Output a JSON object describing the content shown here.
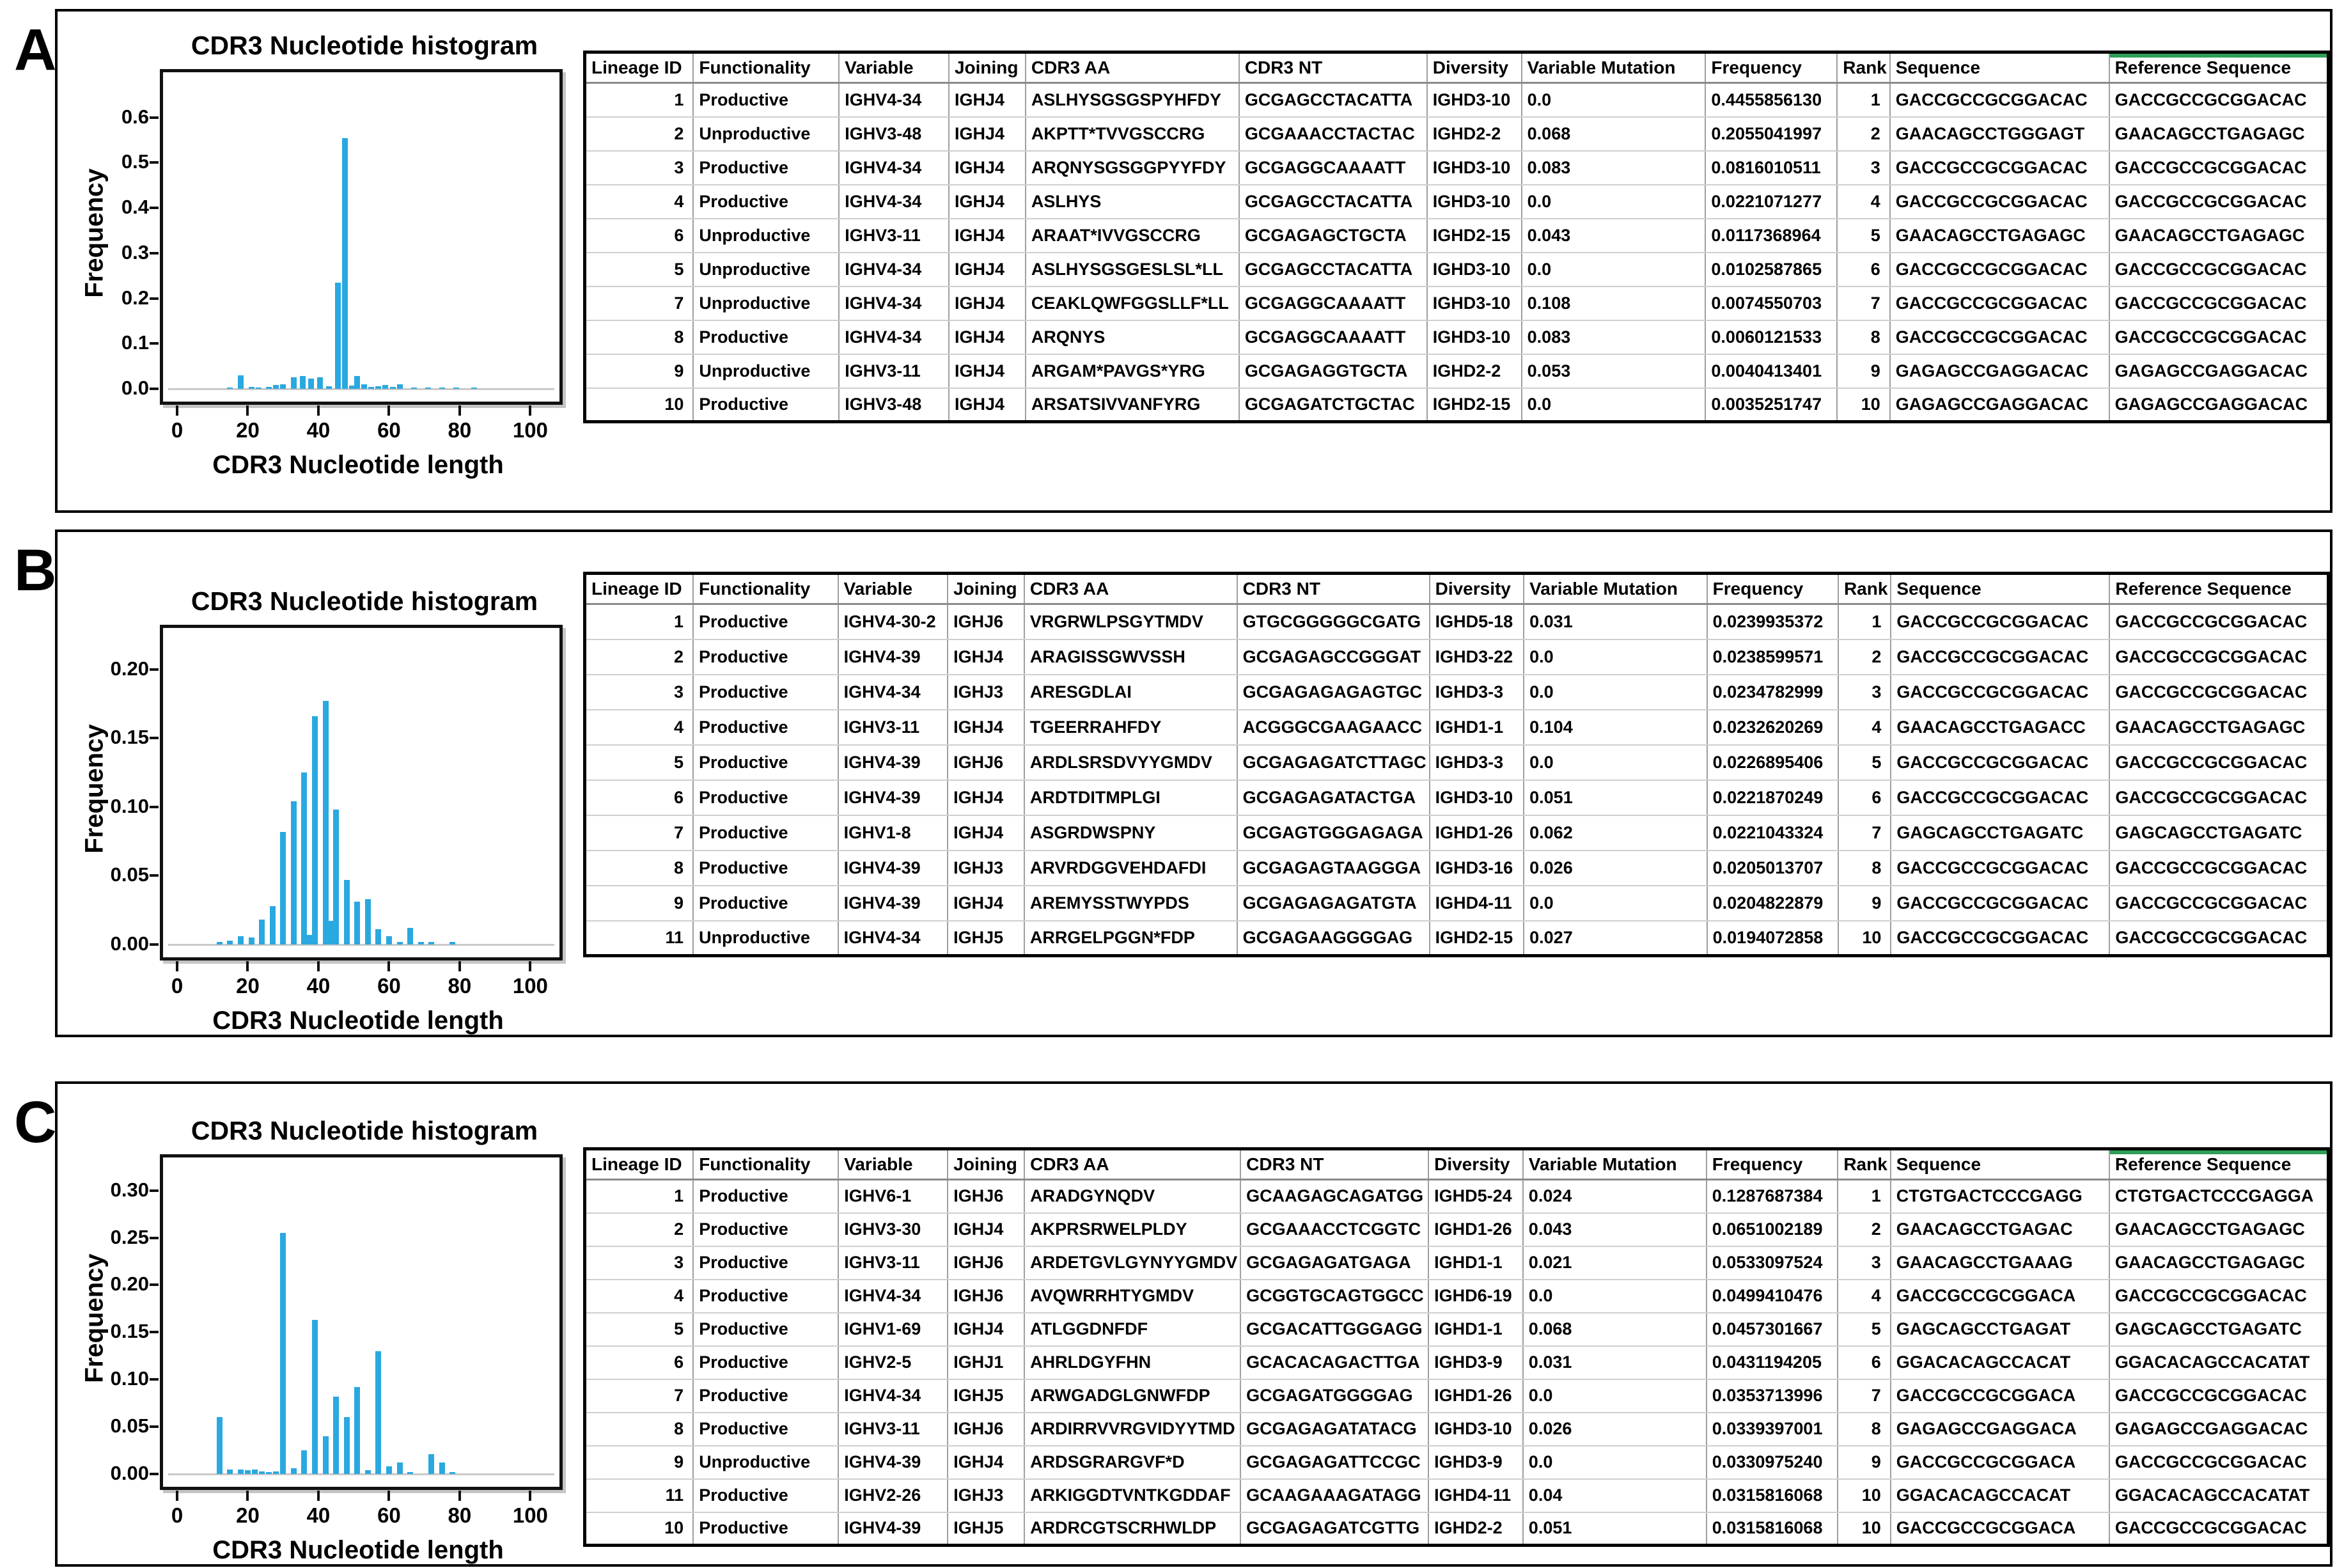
{
  "figure": {
    "bar_color": "#2aa8e0",
    "baseline_color": "#c9c9c9",
    "accent_green": "#2f9e57",
    "panels": [
      {
        "label": "A",
        "table": {
          "headers": [
            "Lineage ID",
            "Functionality",
            "Variable",
            "Joining",
            "CDR3 AA",
            "CDR3 NT",
            "Diversity",
            "Variable Mutation",
            "Frequency",
            "Rank",
            "Sequence",
            "Reference Sequence"
          ],
          "rows": [
            [
              "1",
              "Productive",
              "IGHV4-34",
              "IGHJ4",
              "ASLHYSGSGSPYHFDY",
              "GCGAGCCTACATTA",
              "IGHD3-10",
              "0.0",
              "0.4455856130",
              "1",
              "GACCGCCGCGGACAC",
              "GACCGCCGCGGACAC"
            ],
            [
              "2",
              "Unproductive",
              "IGHV3-48",
              "IGHJ4",
              "AKPTT*TVVGSCCRG",
              "GCGAAACCTACTAC",
              "IGHD2-2",
              "0.068",
              "0.2055041997",
              "2",
              "GAACAGCCTGGGAGT",
              "GAACAGCCTGAGAGC"
            ],
            [
              "3",
              "Productive",
              "IGHV4-34",
              "IGHJ4",
              "ARQNYSGSGGPYYFDY",
              "GCGAGGCAAAATT",
              "IGHD3-10",
              "0.083",
              "0.0816010511",
              "3",
              "GACCGCCGCGGACAC",
              "GACCGCCGCGGACAC"
            ],
            [
              "4",
              "Productive",
              "IGHV4-34",
              "IGHJ4",
              "ASLHYS",
              "GCGAGCCTACATTA",
              "IGHD3-10",
              "0.0",
              "0.0221071277",
              "4",
              "GACCGCCGCGGACAC",
              "GACCGCCGCGGACAC"
            ],
            [
              "6",
              "Unproductive",
              "IGHV3-11",
              "IGHJ4",
              "ARAAT*IVVGSCCRG",
              "GCGAGAGCTGCTA",
              "IGHD2-15",
              "0.043",
              "0.0117368964",
              "5",
              "GAACAGCCTGAGAGC",
              "GAACAGCCTGAGAGC"
            ],
            [
              "5",
              "Unproductive",
              "IGHV4-34",
              "IGHJ4",
              "ASLHYSGSGESLSL*LL",
              "GCGAGCCTACATTA",
              "IGHD3-10",
              "0.0",
              "0.0102587865",
              "6",
              "GACCGCCGCGGACAC",
              "GACCGCCGCGGACAC"
            ],
            [
              "7",
              "Unproductive",
              "IGHV4-34",
              "IGHJ4",
              "CEAKLQWFGGSLLF*LL",
              "GCGAGGCAAAATT",
              "IGHD3-10",
              "0.108",
              "0.0074550703",
              "7",
              "GACCGCCGCGGACAC",
              "GACCGCCGCGGACAC"
            ],
            [
              "8",
              "Productive",
              "IGHV4-34",
              "IGHJ4",
              "ARQNYS",
              "GCGAGGCAAAATT",
              "IGHD3-10",
              "0.083",
              "0.0060121533",
              "8",
              "GACCGCCGCGGACAC",
              "GACCGCCGCGGACAC"
            ],
            [
              "9",
              "Unproductive",
              "IGHV3-11",
              "IGHJ4",
              "ARGAM*PAVGS*YRG",
              "GCGAGAGGTGCTA",
              "IGHD2-2",
              "0.053",
              "0.0040413401",
              "9",
              "GAGAGCCGAGGACAC",
              "GAGAGCCGAGGACAC"
            ],
            [
              "10",
              "Productive",
              "IGHV3-48",
              "IGHJ4",
              "ARSATSIVVANFYRG",
              "GCGAGATCTGCTAC",
              "IGHD2-15",
              "0.0",
              "0.0035251747",
              "10",
              "GAGAGCCGAGGACAC",
              "GAGAGCCGAGGACAC"
            ]
          ]
        }
      },
      {
        "label": "B",
        "table": {
          "headers": [
            "Lineage ID",
            "Functionality",
            "Variable",
            "Joining",
            "CDR3 AA",
            "CDR3 NT",
            "Diversity",
            "Variable Mutation",
            "Frequency",
            "Rank",
            "Sequence",
            "Reference Sequence"
          ],
          "rows": [
            [
              "1",
              "Productive",
              "IGHV4-30-2",
              "IGHJ6",
              "VRGRWLPSGYTMDV",
              "GTGCGGGGGCGATG",
              "IGHD5-18",
              "0.031",
              "0.0239935372",
              "1",
              "GACCGCCGCGGACAC",
              "GACCGCCGCGGACAC"
            ],
            [
              "2",
              "Productive",
              "IGHV4-39",
              "IGHJ4",
              "ARAGISSGWVSSH",
              "GCGAGAGCCGGGAT",
              "IGHD3-22",
              "0.0",
              "0.0238599571",
              "2",
              "GACCGCCGCGGACAC",
              "GACCGCCGCGGACAC"
            ],
            [
              "3",
              "Productive",
              "IGHV4-34",
              "IGHJ3",
              "ARESGDLAI",
              "GCGAGAGAGAGTGC",
              "IGHD3-3",
              "0.0",
              "0.0234782999",
              "3",
              "GACCGCCGCGGACAC",
              "GACCGCCGCGGACAC"
            ],
            [
              "4",
              "Productive",
              "IGHV3-11",
              "IGHJ4",
              "TGEERRAHFDY",
              "ACGGGCGAAGAACC",
              "IGHD1-1",
              "0.104",
              "0.0232620269",
              "4",
              "GAACAGCCTGAGACC",
              "GAACAGCCTGAGAGC"
            ],
            [
              "5",
              "Productive",
              "IGHV4-39",
              "IGHJ6",
              "ARDLSRSDVYYGMDV",
              "GCGAGAGATCTTAGC",
              "IGHD3-3",
              "0.0",
              "0.0226895406",
              "5",
              "GACCGCCGCGGACAC",
              "GACCGCCGCGGACAC"
            ],
            [
              "6",
              "Productive",
              "IGHV4-39",
              "IGHJ4",
              "ARDTDITMPLGI",
              "GCGAGAGATACTGA",
              "IGHD3-10",
              "0.051",
              "0.0221870249",
              "6",
              "GACCGCCGCGGACAC",
              "GACCGCCGCGGACAC"
            ],
            [
              "7",
              "Productive",
              "IGHV1-8",
              "IGHJ4",
              "ASGRDWSPNY",
              "GCGAGTGGGAGAGA",
              "IGHD1-26",
              "0.062",
              "0.0221043324",
              "7",
              "GAGCAGCCTGAGATC",
              "GAGCAGCCTGAGATC"
            ],
            [
              "8",
              "Productive",
              "IGHV4-39",
              "IGHJ3",
              "ARVRDGGVEHDAFDI",
              "GCGAGAGTAAGGGA",
              "IGHD3-16",
              "0.026",
              "0.0205013707",
              "8",
              "GACCGCCGCGGACAC",
              "GACCGCCGCGGACAC"
            ],
            [
              "9",
              "Productive",
              "IGHV4-39",
              "IGHJ4",
              "AREMYSSTWYPDS",
              "GCGAGAGAGATGTA",
              "IGHD4-11",
              "0.0",
              "0.0204822879",
              "9",
              "GACCGCCGCGGACAC",
              "GACCGCCGCGGACAC"
            ],
            [
              "11",
              "Unproductive",
              "IGHV4-34",
              "IGHJ5",
              "ARRGELPGGN*FDP",
              "GCGAGAAGGGGAG",
              "IGHD2-15",
              "0.027",
              "0.0194072858",
              "10",
              "GACCGCCGCGGACAC",
              "GACCGCCGCGGACAC"
            ]
          ]
        }
      },
      {
        "label": "C",
        "table": {
          "headers": [
            "Lineage ID",
            "Functionality",
            "Variable",
            "Joining",
            "CDR3 AA",
            "CDR3 NT",
            "Diversity",
            "Variable Mutation",
            "Frequency",
            "Rank",
            "Sequence",
            "Reference Sequence"
          ],
          "rows": [
            [
              "1",
              "Productive",
              "IGHV6-1",
              "IGHJ6",
              "ARADGYNQDV",
              "GCAAGAGCAGATGG",
              "IGHD5-24",
              "0.024",
              "0.1287687384",
              "1",
              "CTGTGACTCCCGAGG",
              "CTGTGACTCCCGAGGA"
            ],
            [
              "2",
              "Productive",
              "IGHV3-30",
              "IGHJ4",
              "AKPRSRWELPLDY",
              "GCGAAACCTCGGTC",
              "IGHD1-26",
              "0.043",
              "0.0651002189",
              "2",
              "GAACAGCCTGAGAC",
              "GAACAGCCTGAGAGC"
            ],
            [
              "3",
              "Productive",
              "IGHV3-11",
              "IGHJ6",
              "ARDETGVLGYNYYGMDV",
              "GCGAGAGATGAGA",
              "IGHD1-1",
              "0.021",
              "0.0533097524",
              "3",
              "GAACAGCCTGAAAG",
              "GAACAGCCTGAGAGC"
            ],
            [
              "4",
              "Productive",
              "IGHV4-34",
              "IGHJ6",
              "AVQWRRHTYGMDV",
              "GCGGTGCAGTGGCC",
              "IGHD6-19",
              "0.0",
              "0.0499410476",
              "4",
              "GACCGCCGCGGACA",
              "GACCGCCGCGGACAC"
            ],
            [
              "5",
              "Productive",
              "IGHV1-69",
              "IGHJ4",
              "ATLGGDNFDF",
              "GCGACATTGGGAGG",
              "IGHD1-1",
              "0.068",
              "0.0457301667",
              "5",
              "GAGCAGCCTGAGAT",
              "GAGCAGCCTGAGATC"
            ],
            [
              "6",
              "Productive",
              "IGHV2-5",
              "IGHJ1",
              "AHRLDGYFHN",
              "GCACACAGACTTGA",
              "IGHD3-9",
              "0.031",
              "0.0431194205",
              "6",
              "GGACACAGCCACAT",
              "GGACACAGCCACATAT"
            ],
            [
              "7",
              "Productive",
              "IGHV4-34",
              "IGHJ5",
              "ARWGADGLGNWFDP",
              "GCGAGATGGGGAG",
              "IGHD1-26",
              "0.0",
              "0.0353713996",
              "7",
              "GACCGCCGCGGACA",
              "GACCGCCGCGGACAC"
            ],
            [
              "8",
              "Productive",
              "IGHV3-11",
              "IGHJ6",
              "ARDIRRVVRGVIDYYTMD",
              "GCGAGAGATATACG",
              "IGHD3-10",
              "0.026",
              "0.0339397001",
              "8",
              "GAGAGCCGAGGACA",
              "GAGAGCCGAGGACAC"
            ],
            [
              "9",
              "Unproductive",
              "IGHV4-39",
              "IGHJ4",
              "ARDSGRARGVF*D",
              "GCGAGAGATTCCGC",
              "IGHD3-9",
              "0.0",
              "0.0330975240",
              "9",
              "GACCGCCGCGGACA",
              "GACCGCCGCGGACAC"
            ],
            [
              "11",
              "Productive",
              "IGHV2-26",
              "IGHJ3",
              "ARKIGGDTVNTKGDDAF",
              "GCAAGAAAGATAGG",
              "IGHD4-11",
              "0.04",
              "0.0315816068",
              "10",
              "GGACACAGCCACAT",
              "GGACACAGCCACATAT"
            ],
            [
              "10",
              "Productive",
              "IGHV4-39",
              "IGHJ5",
              "ARDRCGTSCRHWLDP",
              "GCGAGAGATCGTTG",
              "IGHD2-2",
              "0.051",
              "0.0315816068",
              "10",
              "GACCGCCGCGGACA",
              "GACCGCCGCGGACAC"
            ]
          ]
        }
      }
    ]
  },
  "chart_data": [
    {
      "type": "bar",
      "title": "CDR3 Nucleotide histogram",
      "xlabel": "CDR3 Nucleotide length",
      "ylabel": "Frequency",
      "xlim": [
        0,
        105
      ],
      "ylim": [
        0,
        0.7
      ],
      "x_ticks": [
        0,
        20,
        40,
        60,
        80,
        100
      ],
      "y_ticks": [
        "0.0",
        "0.1",
        "0.2",
        "0.3",
        "0.4",
        "0.5",
        "0.6"
      ],
      "grid": false,
      "legend": "none",
      "points": [
        [
          15,
          0.003
        ],
        [
          18,
          0.03
        ],
        [
          21,
          0.004
        ],
        [
          23,
          0.003
        ],
        [
          26,
          0.005
        ],
        [
          28,
          0.008
        ],
        [
          30,
          0.01
        ],
        [
          33,
          0.026
        ],
        [
          35.5,
          0.028
        ],
        [
          38,
          0.022
        ],
        [
          40.5,
          0.025
        ],
        [
          43,
          0.006
        ],
        [
          45.5,
          0.235
        ],
        [
          47.5,
          0.555
        ],
        [
          49.5,
          0.007
        ],
        [
          51,
          0.028
        ],
        [
          53,
          0.01
        ],
        [
          55,
          0.005
        ],
        [
          57,
          0.006
        ],
        [
          59,
          0.008
        ],
        [
          61,
          0.005
        ],
        [
          63,
          0.01
        ],
        [
          67,
          0.003
        ],
        [
          71,
          0.003
        ],
        [
          75,
          0.002
        ],
        [
          79,
          0.003
        ],
        [
          84,
          0.003
        ]
      ]
    },
    {
      "type": "bar",
      "title": "CDR3 Nucleotide histogram",
      "xlabel": "CDR3 Nucleotide length",
      "ylabel": "Frequency",
      "xlim": [
        0,
        105
      ],
      "ylim": [
        0,
        0.23
      ],
      "x_ticks": [
        0,
        20,
        40,
        60,
        80,
        100
      ],
      "y_ticks": [
        "0.00",
        "0.05",
        "0.10",
        "0.15",
        "0.20"
      ],
      "grid": false,
      "legend": "none",
      "points": [
        [
          12,
          0.002
        ],
        [
          15,
          0.003
        ],
        [
          18,
          0.006
        ],
        [
          21,
          0.005
        ],
        [
          24,
          0.018
        ],
        [
          27,
          0.028
        ],
        [
          30,
          0.082
        ],
        [
          33,
          0.104
        ],
        [
          36,
          0.125
        ],
        [
          37.5,
          0.007
        ],
        [
          39,
          0.166
        ],
        [
          42,
          0.177
        ],
        [
          43.5,
          0.017
        ],
        [
          45,
          0.098
        ],
        [
          48,
          0.047
        ],
        [
          51,
          0.031
        ],
        [
          54,
          0.033
        ],
        [
          57,
          0.011
        ],
        [
          60,
          0.006
        ],
        [
          63,
          0.002
        ],
        [
          66,
          0.012
        ],
        [
          69,
          0.002
        ],
        [
          72,
          0.002
        ],
        [
          78,
          0.002
        ]
      ]
    },
    {
      "type": "bar",
      "title": "CDR3 Nucleotide histogram",
      "xlabel": "CDR3 Nucleotide length",
      "ylabel": "Frequency",
      "xlim": [
        0,
        105
      ],
      "ylim": [
        0,
        0.335
      ],
      "x_ticks": [
        0,
        20,
        40,
        60,
        80,
        100
      ],
      "y_ticks": [
        "0.00",
        "0.05",
        "0.10",
        "0.15",
        "0.20",
        "0.25",
        "0.30"
      ],
      "grid": false,
      "legend": "none",
      "points": [
        [
          12,
          0.06
        ],
        [
          15,
          0.005
        ],
        [
          18,
          0.005
        ],
        [
          20,
          0.004
        ],
        [
          22,
          0.005
        ],
        [
          24,
          0.003
        ],
        [
          26,
          0.002
        ],
        [
          28,
          0.003
        ],
        [
          30,
          0.255
        ],
        [
          33,
          0.006
        ],
        [
          36,
          0.025
        ],
        [
          39,
          0.163
        ],
        [
          42,
          0.04
        ],
        [
          45,
          0.082
        ],
        [
          48,
          0.06
        ],
        [
          51,
          0.092
        ],
        [
          54,
          0.004
        ],
        [
          57,
          0.13
        ],
        [
          60,
          0.008
        ],
        [
          63,
          0.012
        ],
        [
          66,
          0.002
        ],
        [
          72,
          0.021
        ],
        [
          75,
          0.012
        ],
        [
          78,
          0.002
        ]
      ]
    }
  ]
}
